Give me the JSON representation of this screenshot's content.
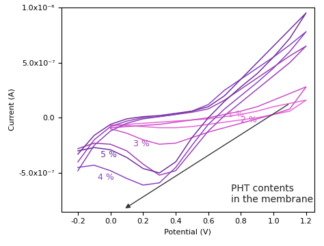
{
  "chart_data": {
    "type": "line",
    "x_label": "Potential (V)",
    "y_label": "Current (A)",
    "xlim": [
      -0.3,
      1.25
    ],
    "ylim": [
      -8.5e-07,
      1e-06
    ],
    "xticks": [
      -0.2,
      0.0,
      0.2,
      0.4,
      0.6,
      0.8,
      1.0,
      1.2
    ],
    "yticks": [
      {
        "value": -5e-07,
        "label": "-5.0x10⁻⁷"
      },
      0.0,
      {
        "value": 5e-07,
        "label": "5.0x10⁻⁷"
      },
      {
        "value": 1e-06,
        "label": "1.0x10⁻⁶"
      }
    ],
    "grid": false,
    "series": [
      {
        "name": "1 %",
        "color": "#e466d6",
        "x": [
          0.0,
          0.1,
          0.2,
          0.3,
          0.4,
          0.5,
          0.6,
          0.7,
          0.8,
          0.9,
          1.0,
          1.1,
          1.2,
          1.1,
          1.0,
          0.9,
          0.8,
          0.7,
          0.6,
          0.5,
          0.4,
          0.3,
          0.2,
          0.1,
          0.0
        ],
        "values": [
          -7e-08,
          -6e-08,
          -5e-08,
          -4e-08,
          -3e-08,
          -2e-08,
          -1e-08,
          1e-08,
          3e-08,
          6e-08,
          1e-07,
          1.3e-07,
          1.6e-07,
          6e-08,
          3e-08,
          0.0,
          -2e-08,
          -4e-08,
          -6e-08,
          -8e-08,
          -9e-08,
          -9e-08,
          -8e-08,
          -7e-08,
          -7e-08
        ]
      },
      {
        "name": "2 %",
        "color": "#d04cc8",
        "x": [
          0.0,
          0.1,
          0.2,
          0.3,
          0.4,
          0.5,
          0.6,
          0.7,
          0.8,
          0.9,
          1.0,
          1.1,
          1.2,
          1.1,
          1.0,
          0.9,
          0.8,
          0.7,
          0.6,
          0.5,
          0.4,
          0.3,
          0.2,
          0.1,
          0.0
        ],
        "values": [
          -9e-08,
          -8e-08,
          -7e-08,
          -6e-08,
          -4e-08,
          -2e-08,
          0.0,
          3e-08,
          6e-08,
          1e-07,
          1.6e-07,
          2.2e-07,
          2.8e-07,
          8e-08,
          3e-08,
          -1e-08,
          -5e-08,
          -9e-08,
          -1.3e-07,
          -1.8e-07,
          -2.3e-07,
          -2.4e-07,
          -2e-07,
          -1.4e-07,
          -1e-07
        ]
      },
      {
        "name": "3 %",
        "color": "#9a3fb4",
        "x": [
          -0.2,
          -0.1,
          0.0,
          0.1,
          0.2,
          0.3,
          0.4,
          0.5,
          0.6,
          0.7,
          0.8,
          0.9,
          1.0,
          1.1,
          1.2,
          1.1,
          1.0,
          0.9,
          0.8,
          0.7,
          0.6,
          0.5,
          0.4,
          0.3,
          0.2,
          0.1,
          0.0,
          -0.1,
          -0.2
        ],
        "values": [
          -4e-07,
          -2e-07,
          -8e-08,
          -3e-08,
          0.0,
          1e-08,
          3e-08,
          5e-08,
          8e-08,
          1.6e-07,
          2.6e-07,
          3.6e-07,
          4.6e-07,
          5.6e-07,
          6.5e-07,
          5e-07,
          3.8e-07,
          2.6e-07,
          1.4e-07,
          2e-08,
          -1.2e-07,
          -3e-07,
          -4.8e-07,
          -5.2e-07,
          -4.2e-07,
          -3e-07,
          -2.4e-07,
          -2.3e-07,
          -2.8e-07
        ]
      },
      {
        "name": "4 %",
        "color": "#8a42c4",
        "x": [
          -0.2,
          -0.1,
          0.0,
          0.1,
          0.2,
          0.3,
          0.4,
          0.5,
          0.6,
          0.7,
          0.8,
          0.9,
          1.0,
          1.1,
          1.2,
          1.1,
          1.0,
          0.9,
          0.8,
          0.7,
          0.6,
          0.5,
          0.4,
          0.3,
          0.2,
          0.1,
          0.0,
          -0.1,
          -0.2
        ],
        "values": [
          -4.8e-07,
          -2.5e-07,
          -1.2e-07,
          -5e-08,
          -1e-08,
          1e-08,
          3e-08,
          6e-08,
          1.2e-07,
          2.5e-07,
          3.5e-07,
          4.5e-07,
          5.5e-07,
          6.6e-07,
          7.8e-07,
          6e-07,
          4.5e-07,
          3.2e-07,
          2e-07,
          8e-08,
          -6e-08,
          -2.5e-07,
          -4.5e-07,
          -5.9e-07,
          -6.1e-07,
          -5.5e-07,
          -4.8e-07,
          -4.3e-07,
          -4.5e-07
        ]
      },
      {
        "name": "5 %",
        "color": "#6e2fa0",
        "x": [
          -0.2,
          -0.1,
          0.0,
          0.1,
          0.2,
          0.3,
          0.4,
          0.5,
          0.6,
          0.7,
          0.8,
          0.9,
          1.0,
          1.1,
          1.2,
          1.1,
          1.0,
          0.9,
          0.8,
          0.7,
          0.6,
          0.5,
          0.4,
          0.3,
          0.2,
          0.1,
          0.0,
          -0.1,
          -0.2
        ],
        "values": [
          -3.3e-07,
          -1.6e-07,
          -6e-08,
          -1e-08,
          1e-08,
          2e-08,
          4e-08,
          6e-08,
          1e-07,
          2e-07,
          3.5e-07,
          5e-07,
          6.5e-07,
          8e-07,
          9.5e-07,
          7.2e-07,
          5.5e-07,
          4e-07,
          2.8e-07,
          1.5e-07,
          0.0,
          -1.8e-07,
          -4e-07,
          -5e-07,
          -4.6e-07,
          -3.6e-07,
          -2.9e-07,
          -2.7e-07,
          -3e-07
        ]
      }
    ],
    "annotations": [
      {
        "text": "1 %",
        "x": 0.72,
        "y": 1e-08,
        "color": "#e466d6"
      },
      {
        "text": "2 %",
        "x": 0.8,
        "y": -4e-08,
        "color": "#d04cc8"
      },
      {
        "text": "3 %",
        "x": 0.14,
        "y": -2.6e-07,
        "color": "#9a3fb4"
      },
      {
        "text": "5 %",
        "x": -0.06,
        "y": -3.6e-07,
        "color": "#6e2fa0"
      },
      {
        "text": "4 %",
        "x": -0.08,
        "y": -5.6e-07,
        "color": "#8a42c4"
      }
    ],
    "arrow_note": {
      "text": "PHT contents\nin the membrane",
      "x": 0.74,
      "y": -6.9e-07,
      "arrow_from": [
        1.1,
        1.3e-07
      ],
      "arrow_to": [
        0.08,
        -8.3e-07
      ]
    }
  }
}
